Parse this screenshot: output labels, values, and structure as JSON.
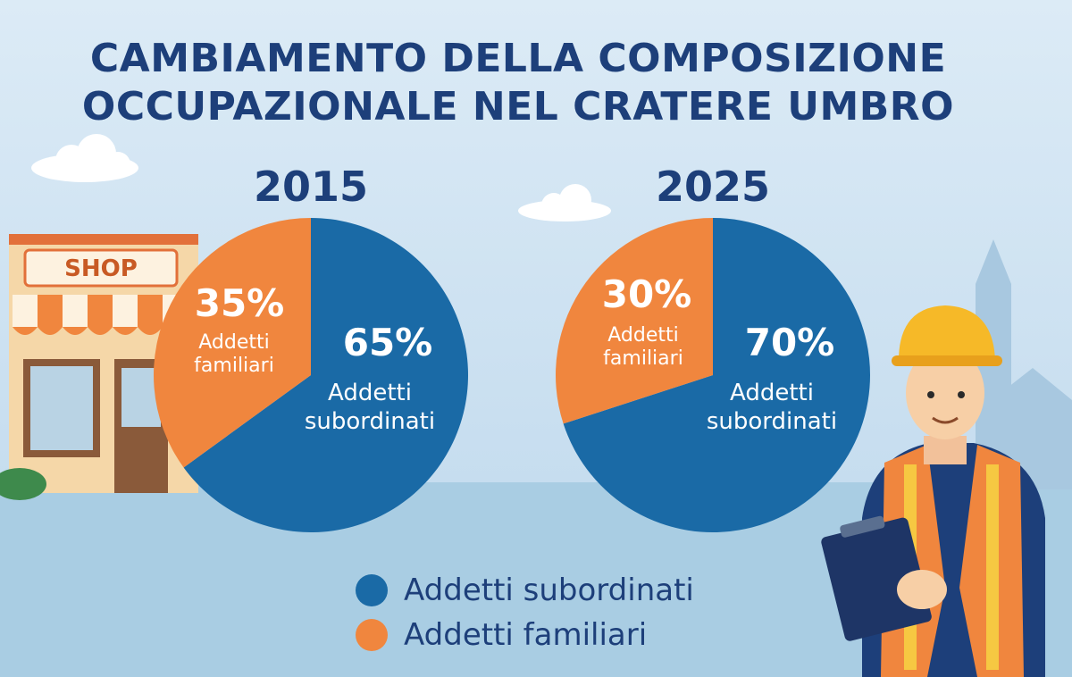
{
  "title_line1": "CAMBIAMENTO DELLA COMPOSIZIONE",
  "title_line2": "OCCUPAZIONALE NEL CRATERE UMBRO",
  "shop_sign": "SHOP",
  "colors": {
    "subordinati": "#1a6aa6",
    "familiari": "#f0863e",
    "title": "#1d3f7a"
  },
  "chart_data": [
    {
      "type": "pie",
      "title": "2015",
      "slices": [
        {
          "label": "Addetti subordinati",
          "label_lines": [
            "Addetti",
            "subordinati"
          ],
          "value": 65,
          "display": "65%"
        },
        {
          "label": "Addetti familiari",
          "label_lines": [
            "Addetti",
            "familiari"
          ],
          "value": 35,
          "display": "35%"
        }
      ]
    },
    {
      "type": "pie",
      "title": "2025",
      "slices": [
        {
          "label": "Addetti subordinati",
          "label_lines": [
            "Addetti",
            "subordinati"
          ],
          "value": 70,
          "display": "70%"
        },
        {
          "label": "Addetti familiari",
          "label_lines": [
            "Addetti",
            "familiari"
          ],
          "value": 30,
          "display": "30%"
        }
      ]
    }
  ],
  "legend": [
    {
      "label": "Addetti subordinati",
      "color": "#1a6aa6"
    },
    {
      "label": "Addetti familiari",
      "color": "#f0863e"
    }
  ]
}
